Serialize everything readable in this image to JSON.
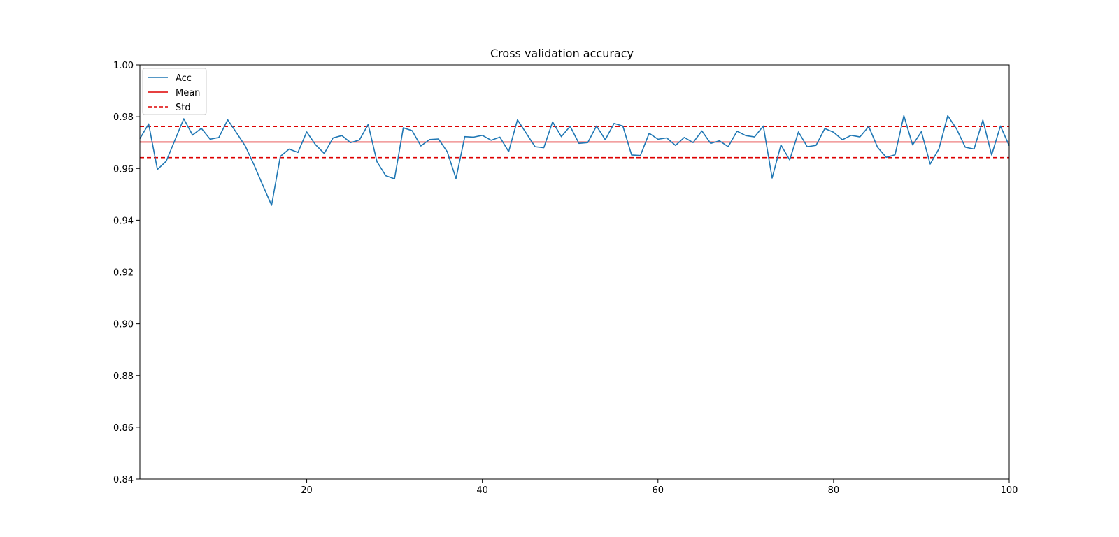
{
  "chart_data": {
    "type": "line",
    "title": "Cross validation accuracy",
    "xlabel": "",
    "ylabel": "",
    "xlim": [
      1,
      100
    ],
    "ylim": [
      0.84,
      1.0
    ],
    "x_ticks": [
      20,
      40,
      60,
      80,
      100
    ],
    "x_tick_labels": [
      "20",
      "40",
      "60",
      "80",
      "100"
    ],
    "y_ticks": [
      0.84,
      0.86,
      0.88,
      0.9,
      0.92,
      0.94,
      0.96,
      0.98,
      1.0
    ],
    "y_tick_labels": [
      "0.84",
      "0.86",
      "0.88",
      "0.90",
      "0.92",
      "0.94",
      "0.96",
      "0.98",
      "1.00"
    ],
    "grid": false,
    "legend_position": "top-left",
    "series": [
      {
        "name": "Acc",
        "color": "#1f77b4",
        "style": "solid",
        "x": [
          1,
          2,
          3,
          4,
          5,
          6,
          7,
          8,
          9,
          10,
          11,
          12,
          13,
          14,
          15,
          16,
          17,
          18,
          19,
          20,
          21,
          22,
          23,
          24,
          25,
          26,
          27,
          28,
          29,
          30,
          31,
          32,
          33,
          34,
          35,
          36,
          37,
          38,
          39,
          40,
          41,
          42,
          43,
          44,
          45,
          46,
          47,
          48,
          49,
          50,
          51,
          52,
          53,
          54,
          55,
          56,
          57,
          58,
          59,
          60,
          61,
          62,
          63,
          64,
          65,
          66,
          67,
          68,
          69,
          70,
          71,
          72,
          73,
          74,
          75,
          76,
          77,
          78,
          79,
          80,
          81,
          82,
          83,
          84,
          85,
          86,
          87,
          88,
          89,
          90,
          91,
          92,
          93,
          94,
          95,
          96,
          97,
          98,
          99,
          100
        ],
        "values": [
          0.9715,
          0.9772,
          0.9596,
          0.9628,
          0.971,
          0.9792,
          0.9729,
          0.9755,
          0.9713,
          0.972,
          0.9788,
          0.9738,
          0.9687,
          0.9614,
          0.9535,
          0.9458,
          0.9647,
          0.9675,
          0.9662,
          0.9741,
          0.9692,
          0.9658,
          0.9718,
          0.9727,
          0.97,
          0.971,
          0.977,
          0.9626,
          0.9572,
          0.956,
          0.9757,
          0.9746,
          0.9687,
          0.9712,
          0.9714,
          0.9665,
          0.9561,
          0.9723,
          0.9721,
          0.9728,
          0.9709,
          0.9721,
          0.9665,
          0.9788,
          0.9736,
          0.9684,
          0.968,
          0.978,
          0.9723,
          0.9763,
          0.9697,
          0.97,
          0.9764,
          0.9711,
          0.9774,
          0.9764,
          0.9652,
          0.965,
          0.9736,
          0.9713,
          0.9718,
          0.9689,
          0.972,
          0.97,
          0.9745,
          0.9697,
          0.9707,
          0.9684,
          0.9744,
          0.9727,
          0.9722,
          0.9764,
          0.9563,
          0.9691,
          0.9633,
          0.9741,
          0.9684,
          0.9689,
          0.9754,
          0.974,
          0.9711,
          0.9728,
          0.9722,
          0.9762,
          0.9682,
          0.9643,
          0.9653,
          0.9804,
          0.9691,
          0.9742,
          0.9617,
          0.9676,
          0.9804,
          0.9753,
          0.9682,
          0.9675,
          0.9787,
          0.9652,
          0.9764,
          0.9688
        ]
      },
      {
        "name": "Mean",
        "color": "#dd0000",
        "style": "solid",
        "value": 0.9702
      },
      {
        "name": "Std",
        "color": "#dd0000",
        "style": "dashed",
        "values_band": [
          0.9642,
          0.9762
        ]
      }
    ]
  }
}
